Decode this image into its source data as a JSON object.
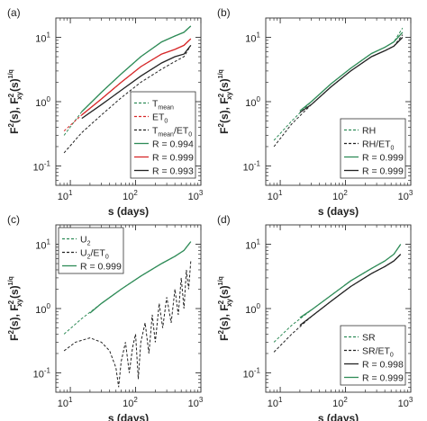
{
  "figure": {
    "xlabel_text": "s (days)",
    "ylabel_main": "F",
    "ylabel_sq": "2",
    "ylabel_s": "(s), F",
    "ylabel_sq2": "2",
    "ylabel_sub": "xy",
    "ylabel_s2": "(s)",
    "ylabel_exp": "1/q"
  },
  "chart_data": [
    {
      "panel_label": "(a)",
      "type": "line",
      "xscale": "log",
      "yscale": "log",
      "xlim": [
        6,
        1000
      ],
      "ylim": [
        0.05,
        20
      ],
      "xticks": [
        {
          "v": 10,
          "b": "10",
          "e": "1"
        },
        {
          "v": 100,
          "b": "10",
          "e": "2"
        },
        {
          "v": 1000,
          "b": "10",
          "e": "3"
        }
      ],
      "yticks": [
        {
          "v": 0.1,
          "b": "10",
          "e": "-1"
        },
        {
          "v": 1,
          "b": "10",
          "e": "0"
        },
        {
          "v": 10,
          "b": "10",
          "e": "1"
        }
      ],
      "legend_position": "bottom-right",
      "series": [
        {
          "name": "T",
          "name_sub": "mean",
          "color": "#2e8b57",
          "dash": "dashed",
          "noisy": false,
          "x": [
            8,
            15,
            30,
            60,
            120,
            250,
            400,
            550,
            700
          ],
          "y": [
            0.3,
            0.7,
            1.4,
            2.7,
            5.0,
            8.5,
            10.5,
            12.0,
            15.0
          ]
        },
        {
          "name": "ET",
          "name_sub": "0",
          "color": "#d62728",
          "dash": "dashed",
          "noisy": false,
          "x": [
            8,
            15,
            30,
            60,
            120,
            250,
            400,
            550,
            700
          ],
          "y": [
            0.35,
            0.62,
            1.1,
            2.0,
            3.5,
            5.5,
            6.5,
            7.5,
            9.5
          ]
        },
        {
          "name": "T",
          "name_sub": "mean",
          "name_rest": "/ET",
          "name_sub2": "0",
          "color": "#222222",
          "dash": "dashed",
          "noisy": false,
          "x": [
            8,
            15,
            30,
            60,
            120,
            250,
            400,
            550,
            700
          ],
          "y": [
            0.16,
            0.33,
            0.62,
            1.15,
            2.0,
            3.2,
            4.2,
            5.0,
            7.5
          ]
        },
        {
          "name": "R = 0.994",
          "color": "#2e8b57",
          "dash": "solid",
          "noisy": false,
          "x": [
            15,
            30,
            60,
            120,
            250,
            400,
            550,
            700
          ],
          "y": [
            0.7,
            1.4,
            2.7,
            5.0,
            8.5,
            10.5,
            12.0,
            15.0
          ]
        },
        {
          "name": "R = 0.999",
          "color": "#d62728",
          "dash": "solid",
          "noisy": false,
          "x": [
            15,
            30,
            60,
            120,
            250,
            400,
            550,
            700
          ],
          "y": [
            0.62,
            1.1,
            2.0,
            3.5,
            5.5,
            6.5,
            7.5,
            9.5
          ]
        },
        {
          "name": "R = 0.993",
          "color": "#222222",
          "dash": "solid",
          "noisy": false,
          "x": [
            15,
            30,
            60,
            120,
            250,
            400,
            550,
            700
          ],
          "y": [
            0.55,
            0.9,
            1.5,
            2.5,
            4.0,
            5.0,
            5.5,
            7.5
          ]
        }
      ]
    },
    {
      "panel_label": "(b)",
      "type": "line",
      "xscale": "log",
      "yscale": "log",
      "xlim": [
        6,
        1000
      ],
      "ylim": [
        0.05,
        20
      ],
      "xticks": [
        {
          "v": 10,
          "b": "10",
          "e": "1"
        },
        {
          "v": 100,
          "b": "10",
          "e": "2"
        },
        {
          "v": 1000,
          "b": "10",
          "e": "3"
        }
      ],
      "yticks": [
        {
          "v": 0.1,
          "b": "10",
          "e": "-1"
        },
        {
          "v": 1,
          "b": "10",
          "e": "0"
        },
        {
          "v": 10,
          "b": "10",
          "e": "1"
        }
      ],
      "legend_position": "bottom-right",
      "series": [
        {
          "name": "RH",
          "color": "#2e8b57",
          "dash": "dashed",
          "noisy": false,
          "x": [
            8,
            15,
            30,
            60,
            120,
            250,
            400,
            550,
            750
          ],
          "y": [
            0.25,
            0.5,
            1.0,
            1.9,
            3.3,
            5.6,
            7.0,
            8.5,
            14.0
          ]
        },
        {
          "name": "RH/ET",
          "name_sub": "0",
          "color": "#222222",
          "dash": "dashed",
          "noisy": false,
          "x": [
            8,
            15,
            30,
            60,
            120,
            250,
            400,
            550,
            750
          ],
          "y": [
            0.2,
            0.45,
            0.9,
            1.7,
            3.0,
            5.0,
            6.2,
            7.3,
            11.0
          ]
        },
        {
          "name": "R = 0.999",
          "color": "#2e8b57",
          "dash": "solid",
          "noisy": false,
          "x": [
            20,
            30,
            60,
            120,
            250,
            400,
            550,
            750
          ],
          "y": [
            0.72,
            1.0,
            1.9,
            3.3,
            5.6,
            7.0,
            8.5,
            12.0
          ]
        },
        {
          "name": "R = 0.999",
          "color": "#222222",
          "dash": "solid",
          "noisy": false,
          "x": [
            20,
            30,
            60,
            120,
            250,
            400,
            550,
            750
          ],
          "y": [
            0.68,
            0.9,
            1.7,
            3.0,
            5.0,
            6.2,
            7.3,
            10.0
          ]
        }
      ]
    },
    {
      "panel_label": "(c)",
      "type": "line",
      "xscale": "log",
      "yscale": "log",
      "xlim": [
        6,
        1000
      ],
      "ylim": [
        0.05,
        20
      ],
      "xticks": [
        {
          "v": 10,
          "b": "10",
          "e": "1"
        },
        {
          "v": 100,
          "b": "10",
          "e": "2"
        },
        {
          "v": 1000,
          "b": "10",
          "e": "3"
        }
      ],
      "yticks": [
        {
          "v": 0.1,
          "b": "10",
          "e": "-1"
        },
        {
          "v": 1,
          "b": "10",
          "e": "0"
        },
        {
          "v": 10,
          "b": "10",
          "e": "1"
        }
      ],
      "legend_position": "top-left",
      "series": [
        {
          "name": "U",
          "name_sub": "2",
          "color": "#2e8b57",
          "dash": "dashed",
          "noisy": false,
          "x": [
            8,
            15,
            30,
            60,
            120,
            250,
            400,
            550,
            700
          ],
          "y": [
            0.4,
            0.7,
            1.2,
            2.0,
            3.2,
            5.0,
            6.5,
            8.0,
            11.0
          ]
        },
        {
          "name": "U",
          "name_sub": "2",
          "name_rest": "/ET",
          "name_sub2": "0",
          "color": "#222222",
          "dash": "dashed",
          "noisy": true,
          "x": [
            8,
            12,
            20,
            30,
            40,
            50,
            55,
            60,
            70,
            80,
            90,
            100,
            110,
            120,
            140,
            160,
            180,
            200,
            230,
            260,
            300,
            350,
            400,
            450,
            500,
            550,
            600,
            650,
            700
          ],
          "y": [
            0.22,
            0.3,
            0.35,
            0.3,
            0.22,
            0.12,
            0.06,
            0.15,
            0.3,
            0.1,
            0.25,
            0.4,
            0.08,
            0.3,
            0.6,
            0.2,
            0.8,
            0.3,
            1.2,
            0.5,
            1.5,
            0.6,
            2.0,
            0.8,
            3.0,
            1.0,
            4.0,
            2.0,
            5.5
          ]
        },
        {
          "name": "R = 0.999",
          "color": "#2e8b57",
          "dash": "solid",
          "noisy": false,
          "x": [
            20,
            30,
            60,
            120,
            250,
            400,
            550,
            700
          ],
          "y": [
            0.85,
            1.2,
            2.0,
            3.2,
            5.0,
            6.5,
            8.0,
            11.0
          ]
        }
      ]
    },
    {
      "panel_label": "(d)",
      "type": "line",
      "xscale": "log",
      "yscale": "log",
      "xlim": [
        6,
        1000
      ],
      "ylim": [
        0.05,
        20
      ],
      "xticks": [
        {
          "v": 10,
          "b": "10",
          "e": "1"
        },
        {
          "v": 100,
          "b": "10",
          "e": "2"
        },
        {
          "v": 1000,
          "b": "10",
          "e": "3"
        }
      ],
      "yticks": [
        {
          "v": 0.1,
          "b": "10",
          "e": "-1"
        },
        {
          "v": 1,
          "b": "10",
          "e": "0"
        },
        {
          "v": 10,
          "b": "10",
          "e": "1"
        }
      ],
      "legend_position": "bottom-right",
      "series": [
        {
          "name": "SR",
          "color": "#2e8b57",
          "dash": "dashed",
          "noisy": false,
          "x": [
            8,
            15,
            30,
            60,
            120,
            250,
            400,
            550,
            700
          ],
          "y": [
            0.3,
            0.55,
            0.95,
            1.6,
            2.7,
            4.2,
            5.5,
            7.0,
            10.0
          ]
        },
        {
          "name": "SR/ET",
          "name_sub": "0",
          "color": "#222222",
          "dash": "dashed",
          "noisy": false,
          "x": [
            8,
            15,
            30,
            60,
            120,
            250,
            400,
            550,
            700
          ],
          "y": [
            0.21,
            0.4,
            0.75,
            1.3,
            2.2,
            3.5,
            4.5,
            5.5,
            7.0
          ]
        },
        {
          "name": "R = 0.998",
          "color": "#222222",
          "dash": "solid",
          "noisy": false,
          "x": [
            20,
            30,
            60,
            120,
            250,
            400,
            550,
            700
          ],
          "y": [
            0.55,
            0.75,
            1.3,
            2.2,
            3.5,
            4.5,
            5.5,
            7.0
          ]
        },
        {
          "name": "R = 0.999",
          "color": "#2e8b57",
          "dash": "solid",
          "noisy": false,
          "x": [
            20,
            30,
            60,
            120,
            250,
            400,
            550,
            700
          ],
          "y": [
            0.72,
            0.95,
            1.6,
            2.7,
            4.2,
            5.5,
            7.0,
            10.0
          ]
        }
      ]
    }
  ]
}
